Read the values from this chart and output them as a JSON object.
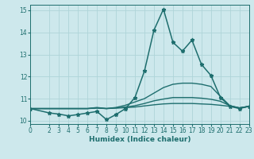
{
  "xlabel": "Humidex (Indice chaleur)",
  "bg_color": "#cde8ec",
  "grid_color": "#afd4d8",
  "line_color": "#1e6e6e",
  "xlim": [
    0,
    23
  ],
  "ylim": [
    9.85,
    15.25
  ],
  "xticks": [
    0,
    2,
    3,
    4,
    5,
    6,
    7,
    8,
    9,
    10,
    11,
    12,
    13,
    14,
    15,
    16,
    17,
    18,
    19,
    20,
    21,
    22,
    23
  ],
  "yticks": [
    10,
    11,
    12,
    13,
    14,
    15
  ],
  "lines": [
    {
      "x": [
        0,
        2,
        3,
        4,
        5,
        6,
        7,
        8,
        9,
        10,
        11,
        12,
        13,
        14,
        15,
        16,
        17,
        18,
        19,
        20,
        21,
        22,
        23
      ],
      "y": [
        10.55,
        10.35,
        10.3,
        10.22,
        10.28,
        10.35,
        10.42,
        10.05,
        10.28,
        10.55,
        11.05,
        12.25,
        14.1,
        15.05,
        13.55,
        13.15,
        13.65,
        12.55,
        12.05,
        11.05,
        10.65,
        10.55,
        10.65
      ],
      "marker": "*",
      "markersize": 3.5,
      "linewidth": 1.1
    },
    {
      "x": [
        0,
        2,
        3,
        4,
        5,
        6,
        7,
        8,
        9,
        10,
        11,
        12,
        13,
        14,
        15,
        16,
        17,
        18,
        19,
        20,
        21,
        22,
        23
      ],
      "y": [
        10.55,
        10.55,
        10.55,
        10.55,
        10.55,
        10.55,
        10.6,
        10.55,
        10.6,
        10.7,
        10.85,
        11.0,
        11.25,
        11.5,
        11.65,
        11.7,
        11.7,
        11.65,
        11.55,
        11.1,
        10.68,
        10.58,
        10.65
      ],
      "marker": "",
      "linewidth": 1.0
    },
    {
      "x": [
        0,
        2,
        3,
        4,
        5,
        6,
        7,
        8,
        9,
        10,
        11,
        12,
        13,
        14,
        15,
        16,
        17,
        18,
        19,
        20,
        21,
        22,
        23
      ],
      "y": [
        10.55,
        10.55,
        10.55,
        10.55,
        10.55,
        10.55,
        10.58,
        10.55,
        10.58,
        10.62,
        10.68,
        10.78,
        10.9,
        10.98,
        11.05,
        11.05,
        11.05,
        11.02,
        10.97,
        10.88,
        10.68,
        10.58,
        10.65
      ],
      "marker": "",
      "linewidth": 1.0
    },
    {
      "x": [
        0,
        2,
        3,
        4,
        5,
        6,
        7,
        8,
        9,
        10,
        11,
        12,
        13,
        14,
        15,
        16,
        17,
        18,
        19,
        20,
        21,
        22,
        23
      ],
      "y": [
        10.55,
        10.55,
        10.55,
        10.55,
        10.55,
        10.55,
        10.57,
        10.55,
        10.57,
        10.59,
        10.62,
        10.67,
        10.72,
        10.76,
        10.78,
        10.78,
        10.78,
        10.76,
        10.74,
        10.7,
        10.65,
        10.58,
        10.65
      ],
      "marker": "",
      "linewidth": 1.0
    }
  ]
}
